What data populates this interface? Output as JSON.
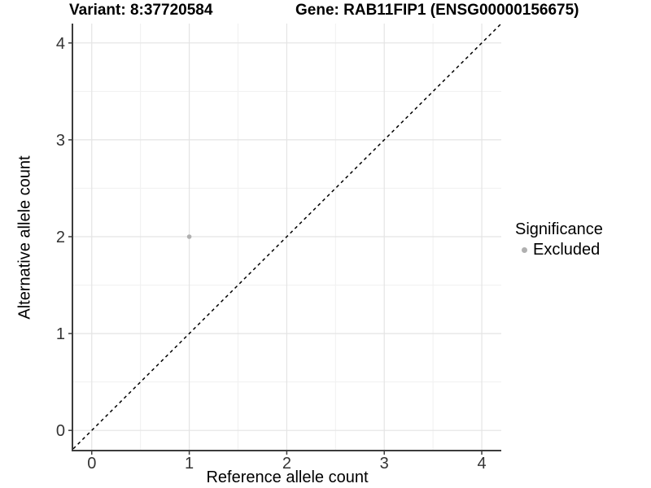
{
  "titles": {
    "variant": "Variant: 8:37720584",
    "gene": "Gene: RAB11FIP1 (ENSG00000156675)"
  },
  "chart_data": {
    "type": "scatter",
    "title_left": "Variant: 8:37720584",
    "title_right": "Gene: RAB11FIP1 (ENSG00000156675)",
    "xlabel": "Reference allele count",
    "ylabel": "Alternative allele count",
    "xlim": [
      -0.19,
      4.2
    ],
    "ylim": [
      -0.2,
      4.2
    ],
    "xticks": [
      0,
      1,
      2,
      3,
      4
    ],
    "yticks": [
      0,
      1,
      2,
      3,
      4
    ],
    "xticks_minor": [
      0.5,
      1.5,
      2.5,
      3.5
    ],
    "yticks_minor": [
      0.5,
      1.5,
      2.5,
      3.5
    ],
    "grid": "major-and-minor",
    "points": [
      {
        "x": 1,
        "y": 2,
        "series": "Excluded"
      }
    ],
    "reference_line": {
      "kind": "diagonal-identity",
      "style": "dashed",
      "color": "#000000"
    },
    "legend": {
      "title": "Significance",
      "position": "right",
      "items": [
        {
          "label": "Excluded",
          "color": "#b0b0b0",
          "marker": "dot"
        }
      ]
    },
    "colors": {
      "background": "#ffffff",
      "grid_major": "#e4e4e4",
      "grid_minor": "#f1f1f1",
      "axis_line": "#3c3c3c",
      "tick_label": "#333333",
      "point": "#b0b0b0"
    }
  }
}
